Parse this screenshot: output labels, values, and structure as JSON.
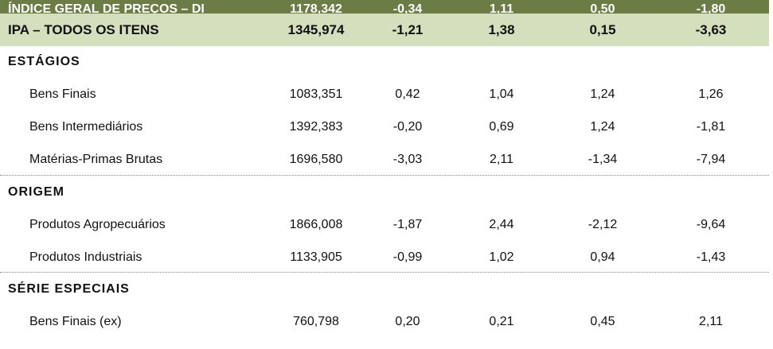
{
  "table": {
    "top_row": {
      "label": "ÍNDICE GERAL DE PREÇOS – DI",
      "values": [
        "1178,342",
        "-0,34",
        "1,11",
        "0,50",
        "-1,80"
      ]
    },
    "total_row": {
      "label": "IPA – TODOS OS ITENS",
      "values": [
        "1345,974",
        "-1,21",
        "1,38",
        "0,15",
        "-3,63"
      ]
    },
    "sections": [
      {
        "title": "ESTÁGIOS",
        "rows": [
          {
            "label": "Bens Finais",
            "values": [
              "1083,351",
              "0,42",
              "1,04",
              "1,24",
              "1,26"
            ]
          },
          {
            "label": "Bens Intermediários",
            "values": [
              "1392,383",
              "-0,20",
              "0,69",
              "1,24",
              "-1,81"
            ]
          },
          {
            "label": "Matérias-Primas Brutas",
            "values": [
              "1696,580",
              "-3,03",
              "2,11",
              "-1,34",
              "-7,94"
            ]
          }
        ]
      },
      {
        "title": "ORIGEM",
        "rows": [
          {
            "label": "Produtos Agropecuários",
            "values": [
              "1866,008",
              "-1,87",
              "2,44",
              "-2,12",
              "-9,64"
            ]
          },
          {
            "label": "Produtos Industriais",
            "values": [
              "1133,905",
              "-0,99",
              "1,02",
              "0,94",
              "-1,43"
            ]
          }
        ]
      },
      {
        "title": "SÉRIE ESPECIAIS",
        "rows": [
          {
            "label": "Bens Finais (ex)",
            "values": [
              "760,798",
              "0,20",
              "0,21",
              "0,45",
              "2,11"
            ]
          }
        ]
      }
    ]
  },
  "colors": {
    "header_bg": "#6b7c45",
    "total_bg": "#d4dfbe"
  }
}
